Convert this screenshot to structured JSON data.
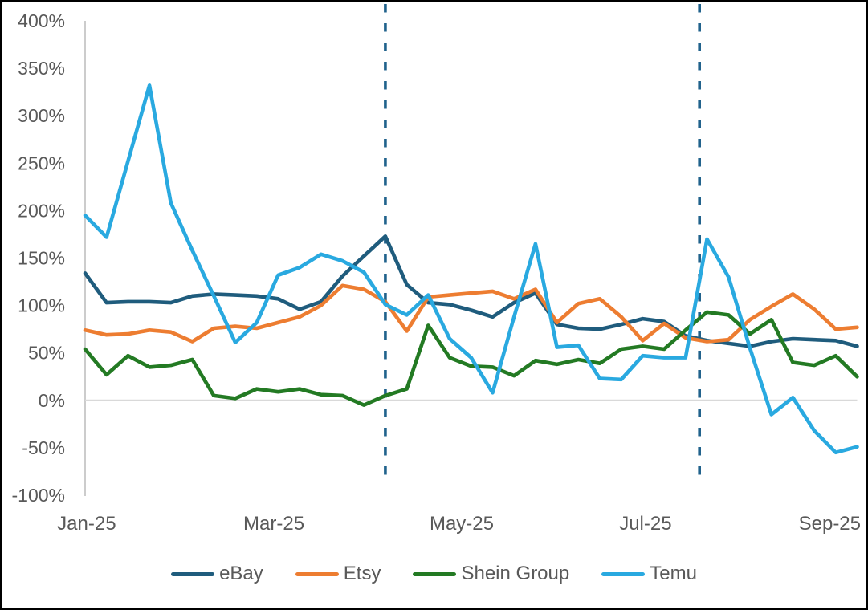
{
  "chart_data": {
    "type": "line",
    "title": "",
    "xlabel": "",
    "ylabel": "",
    "x_unit": "weekly points, Jan-25 through mid-Sep-25",
    "y_unit": "%",
    "ylim": [
      -100,
      400
    ],
    "y_tick_step": 50,
    "y_tick_labels": [
      "400%",
      "350%",
      "300%",
      "250%",
      "200%",
      "150%",
      "100%",
      "50%",
      "0%",
      "-50%",
      "-100%"
    ],
    "x_tick_labels": [
      "Jan-25",
      "Mar-25",
      "May-25",
      "Jul-25",
      "Sep-25"
    ],
    "gridlines": "zero line only",
    "legend_position": "bottom",
    "series": [
      {
        "name": "eBay",
        "color": "#1F5C7D",
        "values": [
          134,
          103,
          104,
          104,
          103,
          110,
          112,
          111,
          110,
          107,
          96,
          104,
          131,
          152,
          173,
          122,
          103,
          101,
          95,
          88,
          103,
          113,
          80,
          76,
          75,
          80,
          86,
          83,
          68,
          63,
          60,
          57,
          62,
          65,
          64,
          63,
          57
        ]
      },
      {
        "name": "Etsy",
        "color": "#ED7D31",
        "values": [
          74,
          69,
          70,
          74,
          72,
          62,
          76,
          78,
          76,
          82,
          88,
          100,
          121,
          117,
          104,
          73,
          109,
          111,
          113,
          115,
          107,
          117,
          82,
          102,
          107,
          88,
          63,
          81,
          66,
          62,
          64,
          85,
          99,
          112,
          96,
          75,
          77
        ]
      },
      {
        "name": "Shein Group",
        "color": "#237A23",
        "values": [
          54,
          27,
          47,
          35,
          37,
          43,
          5,
          2,
          12,
          9,
          12,
          6,
          5,
          -5,
          5,
          12,
          79,
          45,
          36,
          35,
          26,
          42,
          38,
          43,
          39,
          54,
          57,
          54,
          74,
          93,
          90,
          70,
          85,
          40,
          37,
          47,
          25
        ]
      },
      {
        "name": "Temu",
        "color": "#29A9E0",
        "values": [
          195,
          172,
          252,
          332,
          208,
          158,
          110,
          61,
          82,
          132,
          140,
          154,
          147,
          135,
          101,
          90,
          111,
          65,
          45,
          8,
          88,
          165,
          56,
          58,
          23,
          22,
          47,
          45,
          45,
          170,
          130,
          55,
          -15,
          3,
          -32,
          -55,
          -49
        ]
      }
    ],
    "annotations": {
      "vertical_dashed_lines": {
        "color": "#20628C",
        "positions_week_index": [
          14,
          28.65
        ]
      }
    },
    "colors": {
      "axis_text": "#595959",
      "zero_gridline": "#D9D9D9",
      "axis_line": "#BFBFBF",
      "frame_border": "#000000"
    }
  }
}
